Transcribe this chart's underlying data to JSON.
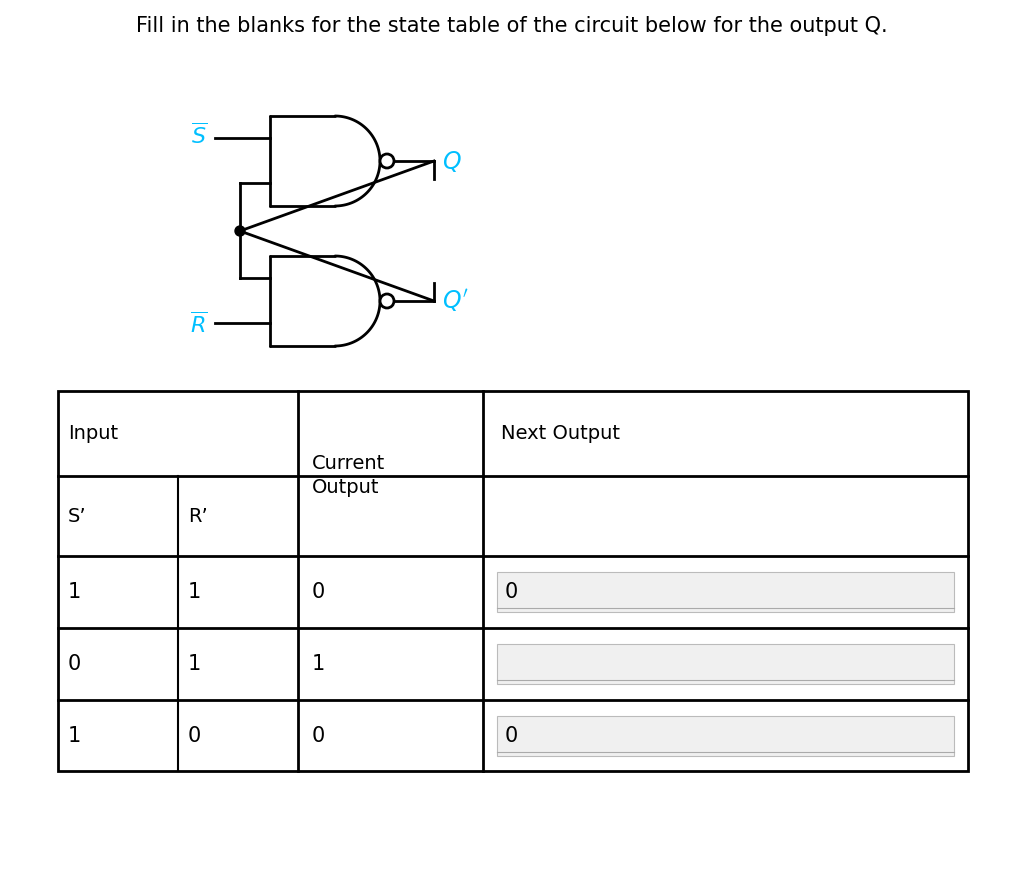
{
  "title": "Fill in the blanks for the state table of the circuit below for the output Q.",
  "title_fontsize": 15,
  "title_color": "#000000",
  "background_color": "#ffffff",
  "circuit": {
    "label_color": "#00bfff",
    "gate_lw": 2.0,
    "wire_lw": 2.0
  },
  "table": {
    "rows": [
      [
        "1",
        "1",
        "0",
        "0"
      ],
      [
        "0",
        "1",
        "1",
        ""
      ],
      [
        "1",
        "0",
        "0",
        "0"
      ]
    ],
    "ans_values": [
      "0",
      "",
      "0"
    ]
  }
}
